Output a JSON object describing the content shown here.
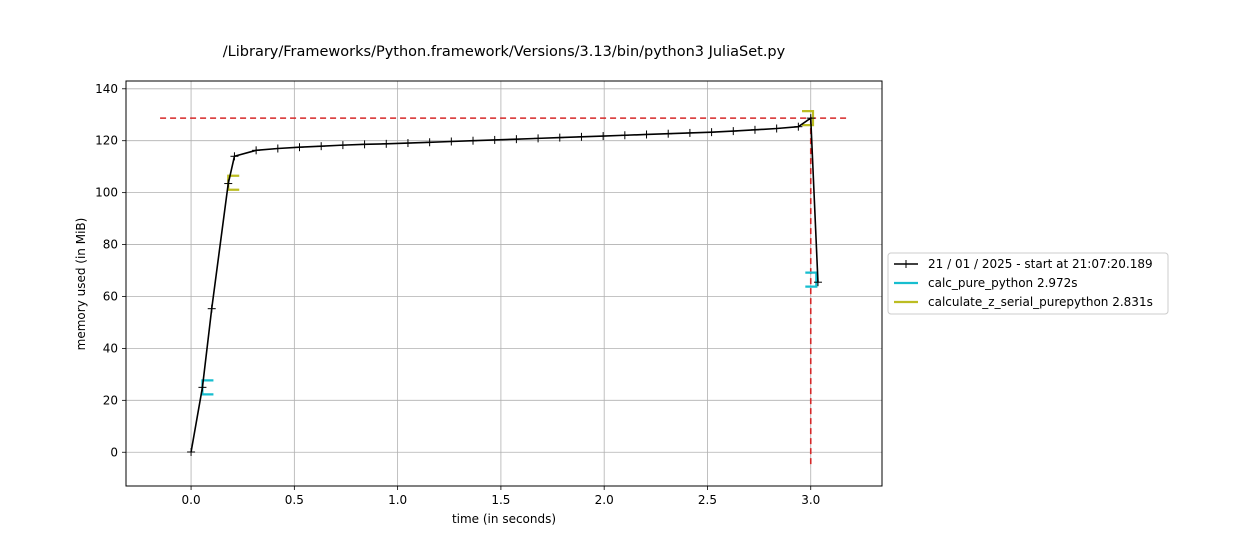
{
  "chart_data": {
    "type": "line",
    "title": "/Library/Frameworks/Python.framework/Versions/3.13/bin/python3 JuliaSet.py",
    "xlabel": "time (in seconds)",
    "ylabel": "memory used (in MiB)",
    "xlim": [
      -0.315,
      3.345
    ],
    "ylim": [
      -13,
      143
    ],
    "xticks": [
      0.0,
      0.5,
      1.0,
      1.5,
      2.0,
      2.5,
      3.0
    ],
    "xtick_labels": [
      "0.0",
      "0.5",
      "1.0",
      "1.5",
      "2.0",
      "2.5",
      "3.0"
    ],
    "yticks": [
      0,
      20,
      40,
      60,
      80,
      100,
      120,
      140
    ],
    "ytick_labels": [
      "0",
      "20",
      "40",
      "60",
      "80",
      "100",
      "120",
      "140"
    ],
    "grid": true,
    "legend_position": "center-right-outside",
    "series": [
      {
        "name": "21 / 01 / 2025 - start at 21:07:20.189",
        "color": "#000000",
        "marker": "+",
        "x": [
          0.0,
          0.055,
          0.1,
          0.18,
          0.21,
          0.315,
          0.42,
          0.525,
          0.63,
          0.735,
          0.84,
          0.945,
          1.05,
          1.155,
          1.26,
          1.365,
          1.47,
          1.575,
          1.68,
          1.785,
          1.89,
          1.995,
          2.1,
          2.205,
          2.31,
          2.415,
          2.52,
          2.625,
          2.73,
          2.835,
          2.94,
          3.0,
          3.035
        ],
        "y": [
          0.1,
          25.0,
          55.3,
          103.5,
          114.0,
          116.3,
          117.0,
          117.5,
          117.9,
          118.3,
          118.6,
          118.8,
          119.1,
          119.4,
          119.7,
          120.0,
          120.3,
          120.6,
          120.9,
          121.2,
          121.5,
          121.8,
          122.1,
          122.4,
          122.7,
          123.0,
          123.3,
          123.7,
          124.2,
          124.7,
          125.4,
          128.7,
          65.5
        ]
      },
      {
        "name": "calc_pure_python 2.972s",
        "color": "#17becf",
        "type": "bracket",
        "start": 0.055,
        "end": 3.027,
        "y_start": 25.0,
        "y_end": 66.5
      },
      {
        "name": "calculate_z_serial_purepython 2.831s",
        "color": "#bcbd22",
        "type": "bracket",
        "start": 0.18,
        "end": 3.011,
        "y_start": 103.8,
        "y_end": 128.7
      }
    ],
    "annotations": {
      "max_memory": 128.7,
      "max_time": 3.0,
      "max_line_color": "#d62728"
    }
  }
}
